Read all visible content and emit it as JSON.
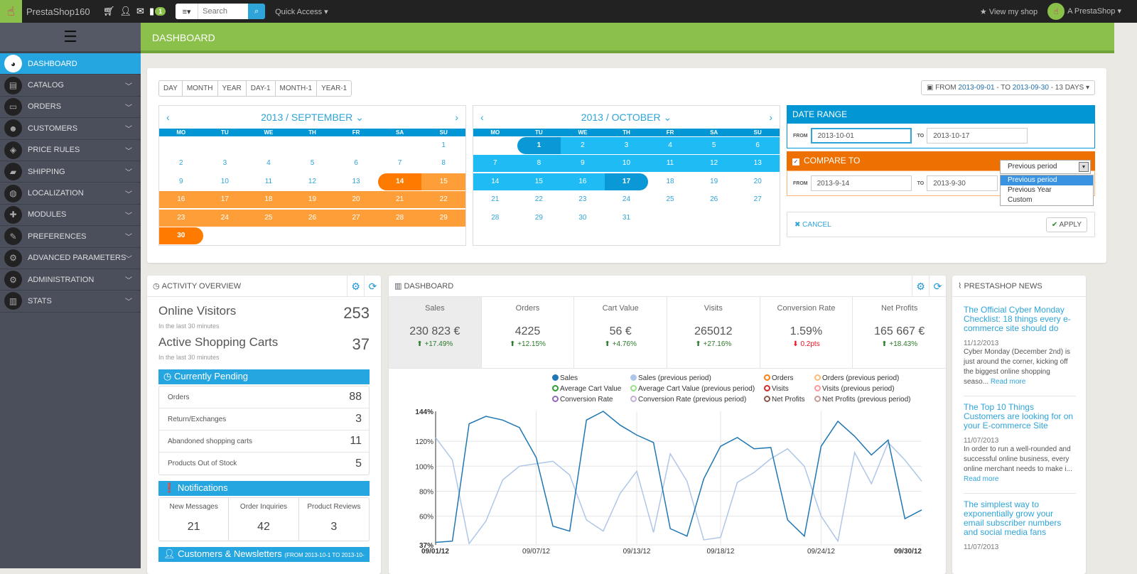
{
  "topbar": {
    "shop_name": "PrestaShop160",
    "notification_count": "1",
    "search_menu_icon": "list-icon",
    "search_placeholder": "Search",
    "quick_access": "Quick Access ▾",
    "view_shop": "View my shop",
    "user": "A PrestaShop ▾"
  },
  "page_title": "DASHBOARD",
  "sidebar": {
    "items": [
      {
        "label": "DASHBOARD",
        "icon": "dashboard-gauge-icon",
        "glyph": "◕",
        "active": true
      },
      {
        "label": "CATALOG",
        "icon": "book-icon",
        "glyph": "▤"
      },
      {
        "label": "ORDERS",
        "icon": "credit-card-icon",
        "glyph": "▭"
      },
      {
        "label": "CUSTOMERS",
        "icon": "users-icon",
        "glyph": "☻"
      },
      {
        "label": "PRICE RULES",
        "icon": "tags-icon",
        "glyph": "◈"
      },
      {
        "label": "SHIPPING",
        "icon": "truck-icon",
        "glyph": "▰"
      },
      {
        "label": "LOCALIZATION",
        "icon": "globe-icon",
        "glyph": "◍"
      },
      {
        "label": "MODULES",
        "icon": "puzzle-icon",
        "glyph": "✚"
      },
      {
        "label": "PREFERENCES",
        "icon": "wrench-icon",
        "glyph": "✎"
      },
      {
        "label": "ADVANCED PARAMETERS",
        "icon": "cogs-icon",
        "glyph": "⚙"
      },
      {
        "label": "ADMINISTRATION",
        "icon": "gear-icon",
        "glyph": "⚙"
      },
      {
        "label": "STATS",
        "icon": "bar-chart-icon",
        "glyph": "▥"
      }
    ]
  },
  "presets": [
    "DAY",
    "MONTH",
    "YEAR",
    "DAY-1",
    "MONTH-1",
    "YEAR-1"
  ],
  "range_button": {
    "from_label": "FROM",
    "from": "2013-09-01",
    "to_label": "- TO",
    "to": "2013-09-30",
    "days": "- 13 DAYS ▾"
  },
  "calendar_left": {
    "title": "2013 / SEPTEMBER ⌄",
    "dow": [
      "MO",
      "TU",
      "WE",
      "TH",
      "FR",
      "SA",
      "SU"
    ]
  },
  "calendar_right": {
    "title": "2013 / OCTOBER ⌄",
    "dow": [
      "MO",
      "TU",
      "WE",
      "TH",
      "FR",
      "SA",
      "SU"
    ]
  },
  "date_range": {
    "title": "DATE RANGE",
    "from_label": "FROM",
    "from": "2013-10-01",
    "to_label": "TO",
    "to": "2013-10-17"
  },
  "compare": {
    "title": "COMPARE TO",
    "checked": true,
    "from_label": "FROM",
    "from": "2013-9-14",
    "to_label": "TO",
    "to": "2013-9-30",
    "selected": "Previous period",
    "options": [
      "Previous period",
      "Previous Year",
      "Custom"
    ]
  },
  "actions": {
    "cancel": "CANCEL",
    "apply": "APPLY"
  },
  "activity": {
    "title": "ACTIVITY OVERVIEW",
    "online_visitors_label": "Online Visitors",
    "online_visitors": "253",
    "online_sub": "In the last 30 minutes",
    "carts_label": "Active Shopping Carts",
    "carts": "37",
    "carts_sub": "In the last 30 minutes",
    "pending_title": "Currently Pending",
    "pending": [
      {
        "label": "Orders",
        "value": "88"
      },
      {
        "label": "Return/Exchanges",
        "value": "3"
      },
      {
        "label": "Abandoned shopping carts",
        "value": "11"
      },
      {
        "label": "Products Out of Stock",
        "value": "5"
      }
    ],
    "notifications_title": "Notifications",
    "notifications": [
      {
        "label": "New Messages",
        "value": "21"
      },
      {
        "label": "Order Inquiries",
        "value": "42"
      },
      {
        "label": "Product Reviews",
        "value": "3"
      }
    ],
    "customers_title": "Customers & Newsletters",
    "customers_sub": "(FROM 2013-10-1 TO 2013-10-"
  },
  "dashboard": {
    "title": "DASHBOARD",
    "kpis": [
      {
        "label": "Sales",
        "value": "230 823 €",
        "delta": "+17.49%",
        "up": true
      },
      {
        "label": "Orders",
        "value": "4225",
        "delta": "+12.15%",
        "up": true
      },
      {
        "label": "Cart Value",
        "value": "56 €",
        "delta": "+4.76%",
        "up": true
      },
      {
        "label": "Visits",
        "value": "265012",
        "delta": "+27.16%",
        "up": true
      },
      {
        "label": "Conversion Rate",
        "value": "1.59%",
        "delta": "0.2pts",
        "up": false
      },
      {
        "label": "Net Profits",
        "value": "165 667 €",
        "delta": "+18.43%",
        "up": true
      }
    ],
    "legend": [
      {
        "label": "Sales",
        "color": "#1f77b4",
        "filled": true
      },
      {
        "label": "Sales (previous period)",
        "color": "#aec7e8",
        "filled": true
      },
      {
        "label": "Orders",
        "color": "#ff7f0e"
      },
      {
        "label": "Orders (previous period)",
        "color": "#ffbb78"
      },
      {
        "label": "Average Cart Value",
        "color": "#2ca02c"
      },
      {
        "label": "Average Cart Value (previous period)",
        "color": "#98df8a"
      },
      {
        "label": "Visits",
        "color": "#d62728"
      },
      {
        "label": "Visits (previous period)",
        "color": "#ff9896"
      },
      {
        "label": "Conversion Rate",
        "color": "#9467bd"
      },
      {
        "label": "Conversion Rate (previous period)",
        "color": "#c5b0d5"
      },
      {
        "label": "Net Profits",
        "color": "#8c564b"
      },
      {
        "label": "Net Profits (previous period)",
        "color": "#c49c94"
      }
    ]
  },
  "chart_data": {
    "type": "line",
    "title": "",
    "xlabel": "",
    "ylabel": "",
    "ylim": [
      37,
      144
    ],
    "yticks": [
      "37%",
      "60%",
      "80%",
      "100%",
      "120%",
      "144%"
    ],
    "xticks": [
      "09/01/12",
      "09/07/12",
      "09/13/12",
      "09/18/12",
      "09/24/12",
      "09/30/12"
    ],
    "x": [
      "09/01",
      "09/02",
      "09/03",
      "09/04",
      "09/05",
      "09/06",
      "09/07",
      "09/08",
      "09/09",
      "09/10",
      "09/11",
      "09/12",
      "09/13",
      "09/14",
      "09/15",
      "09/16",
      "09/17",
      "09/18",
      "09/19",
      "09/20",
      "09/21",
      "09/22",
      "09/23",
      "09/24",
      "09/25",
      "09/26",
      "09/27",
      "09/28",
      "09/29",
      "09/30"
    ],
    "grid": true,
    "series": [
      {
        "name": "Sales",
        "color": "#1f77b4",
        "values": [
          39,
          40,
          134,
          140,
          137,
          131,
          107,
          52,
          48,
          137,
          144,
          133,
          125,
          119,
          50,
          44,
          90,
          116,
          123,
          114,
          115,
          57,
          44,
          116,
          136,
          124,
          109,
          121,
          58,
          65
        ]
      },
      {
        "name": "Sales (previous period)",
        "color": "#aec7e8",
        "values": [
          123,
          105,
          38,
          56,
          89,
          100,
          102,
          104,
          93,
          57,
          48,
          78,
          96,
          47,
          110,
          88,
          41,
          43,
          87,
          95,
          106,
          114,
          100,
          60,
          40,
          111,
          86,
          119,
          105,
          88
        ]
      }
    ]
  },
  "news": {
    "title": "PRESTASHOP NEWS",
    "items": [
      {
        "title": "The Official Cyber Monday Checklist: 18 things every e-commerce site should do",
        "date": "11/12/2013",
        "body": "Cyber Monday (December 2nd) is just around the corner, kicking off the biggest online shopping seaso... ",
        "link": "Read more"
      },
      {
        "title": "The Top 10 Things Customers are looking for on your E-commerce Site",
        "date": "11/07/2013",
        "body": "In order to run a well-rounded and successful online business, every online merchant needs to make i... ",
        "link": "Read more"
      },
      {
        "title": "The simplest way to exponentially grow your email subscriber numbers and social media fans",
        "date": "11/07/2013",
        "body": "",
        "link": ""
      }
    ]
  }
}
